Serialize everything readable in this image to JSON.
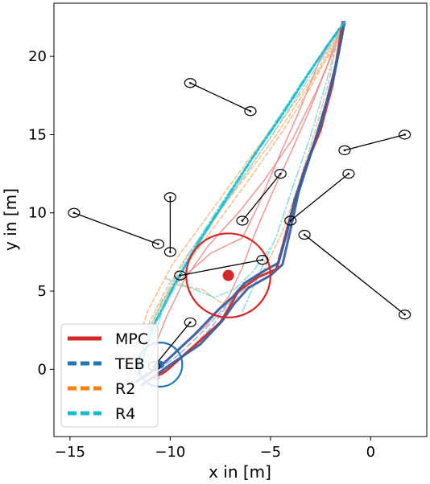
{
  "chart_data": {
    "type": "line",
    "title": "",
    "xlabel": "x in [m]",
    "ylabel": "y in [m]",
    "xlim": [
      -15.8,
      2.8
    ],
    "ylim": [
      -4.3,
      23.4
    ],
    "xticks": [
      -15,
      -10,
      -5,
      0
    ],
    "xtick_labels": [
      "−15",
      "−10",
      "−5",
      "0"
    ],
    "yticks": [
      0,
      5,
      10,
      15,
      20
    ],
    "ytick_labels": [
      "0",
      "5",
      "10",
      "15",
      "20"
    ],
    "legend": {
      "placement": "lower-left",
      "entries": [
        {
          "name": "MPC",
          "color": "#d62728",
          "style": "solid"
        },
        {
          "name": "TEB",
          "color": "#1f77b4",
          "style": "dashed"
        },
        {
          "name": "R2",
          "color": "#ff7f0e",
          "style": "dashed"
        },
        {
          "name": "R4",
          "color": "#17becf",
          "style": "dashed"
        }
      ]
    },
    "obstacles": [
      {
        "start": [
          -9.0,
          18.3
        ],
        "end": [
          -6.0,
          16.5
        ]
      },
      {
        "start": [
          -10.0,
          11.0
        ],
        "end": [
          -10.0,
          7.5
        ]
      },
      {
        "start": [
          -14.8,
          10.0
        ],
        "end": [
          -10.6,
          8.0
        ]
      },
      {
        "start": [
          -6.4,
          9.5
        ],
        "end": [
          -4.5,
          12.5
        ]
      },
      {
        "start": [
          -4.0,
          9.5
        ],
        "end": [
          -1.1,
          12.5
        ]
      },
      {
        "start": [
          -1.3,
          14.0
        ],
        "end": [
          1.7,
          15.0
        ]
      },
      {
        "start": [
          -3.3,
          8.6
        ],
        "end": [
          1.7,
          3.5
        ]
      },
      {
        "start": [
          -9.5,
          6.0
        ],
        "end": [
          -5.4,
          7.0
        ]
      },
      {
        "start": [
          -10.8,
          0.2
        ],
        "end": [
          -9.0,
          3.0
        ]
      }
    ],
    "robot_start": [
      -7.1,
      6.0
    ],
    "robot_radius": 2.1,
    "goal_region": {
      "center": [
        -10.5,
        0.3
      ],
      "radius": 1.1
    },
    "series": [
      {
        "name": "MPC",
        "color": "#d62728",
        "role": "main",
        "points": [
          [
            -11.2,
            -0.8
          ],
          [
            -10.2,
            -0.1
          ],
          [
            -8.8,
            1.5
          ],
          [
            -7.5,
            3.0
          ],
          [
            -6.9,
            4.3
          ],
          [
            -6.6,
            5.0
          ],
          [
            -5.6,
            5.9
          ],
          [
            -4.7,
            6.4
          ],
          [
            -4.4,
            7.8
          ],
          [
            -4.0,
            9.8
          ],
          [
            -3.3,
            12.8
          ],
          [
            -2.5,
            15.3
          ],
          [
            -1.9,
            18.2
          ],
          [
            -1.4,
            22.2
          ]
        ]
      },
      {
        "name": "MPC",
        "color": "#e88482",
        "role": "variant",
        "points": [
          [
            -11.3,
            -0.6
          ],
          [
            -10.0,
            0.8
          ],
          [
            -8.2,
            2.8
          ],
          [
            -7.1,
            4.6
          ],
          [
            -6.4,
            6.5
          ],
          [
            -5.8,
            8.6
          ],
          [
            -4.9,
            11.3
          ],
          [
            -4.0,
            13.8
          ],
          [
            -3.1,
            16.4
          ],
          [
            -2.2,
            19.3
          ],
          [
            -1.4,
            22.2
          ]
        ]
      },
      {
        "name": "MPC",
        "color": "#e88482",
        "role": "variant",
        "points": [
          [
            -11.1,
            0.4
          ],
          [
            -10.2,
            3.3
          ],
          [
            -9.3,
            5.7
          ],
          [
            -8.1,
            7.9
          ],
          [
            -6.6,
            10.0
          ],
          [
            -5.3,
            12.1
          ],
          [
            -3.9,
            14.7
          ],
          [
            -2.7,
            17.8
          ],
          [
            -1.7,
            20.8
          ],
          [
            -1.4,
            22.2
          ]
        ]
      },
      {
        "name": "MPC",
        "color": "#e88482",
        "role": "variant",
        "points": [
          [
            -9.6,
            5.6
          ],
          [
            -8.0,
            7.4
          ],
          [
            -6.4,
            8.4
          ],
          [
            -5.6,
            10.5
          ],
          [
            -4.5,
            13.8
          ],
          [
            -3.5,
            16.7
          ],
          [
            -2.6,
            19.6
          ],
          [
            -1.6,
            21.8
          ]
        ]
      },
      {
        "name": "TEB",
        "color": "#3a5fa0",
        "role": "main",
        "points": [
          [
            -11.7,
            -0.8
          ],
          [
            -10.3,
            0.4
          ],
          [
            -8.8,
            2.2
          ],
          [
            -7.6,
            3.8
          ],
          [
            -6.9,
            4.6
          ],
          [
            -6.3,
            5.5
          ],
          [
            -5.3,
            6.3
          ],
          [
            -4.6,
            6.8
          ],
          [
            -4.2,
            8.6
          ],
          [
            -3.8,
            10.8
          ],
          [
            -3.2,
            13.1
          ],
          [
            -2.5,
            15.6
          ],
          [
            -1.8,
            18.9
          ],
          [
            -1.3,
            22.2
          ]
        ]
      },
      {
        "name": "TEB",
        "color": "#3a5fa0",
        "role": "main",
        "points": [
          [
            -11.4,
            -1.0
          ],
          [
            -10.0,
            0.3
          ],
          [
            -8.5,
            1.6
          ],
          [
            -7.4,
            3.1
          ],
          [
            -6.8,
            4.2
          ],
          [
            -6.1,
            5.2
          ],
          [
            -5.0,
            6.0
          ],
          [
            -4.4,
            6.7
          ],
          [
            -4.0,
            8.9
          ],
          [
            -3.6,
            11.3
          ],
          [
            -2.9,
            14.1
          ],
          [
            -2.2,
            17.1
          ],
          [
            -1.6,
            20.2
          ],
          [
            -1.3,
            22.2
          ]
        ]
      },
      {
        "name": "TEB",
        "color": "#86a9cf",
        "role": "variant",
        "points": [
          [
            -11.9,
            -1.6
          ],
          [
            -10.6,
            -0.6
          ],
          [
            -9.2,
            1.0
          ],
          [
            -8.0,
            2.6
          ],
          [
            -7.2,
            4.0
          ],
          [
            -6.6,
            4.9
          ],
          [
            -5.4,
            5.7
          ],
          [
            -4.8,
            6.2
          ],
          [
            -4.5,
            7.6
          ],
          [
            -4.0,
            9.9
          ]
        ]
      },
      {
        "name": "TEB",
        "color": "#86a9cf",
        "role": "variant",
        "points": [
          [
            -10.9,
            -0.3
          ],
          [
            -9.6,
            0.9
          ],
          [
            -8.3,
            2.5
          ],
          [
            -7.0,
            4.4
          ],
          [
            -6.0,
            5.8
          ],
          [
            -5.1,
            6.5
          ]
        ]
      },
      {
        "name": "R2",
        "color": "#ffae6e",
        "role": "variant",
        "points": [
          [
            -12.1,
            -0.6
          ],
          [
            -11.3,
            2.3
          ],
          [
            -10.3,
            4.9
          ],
          [
            -9.2,
            7.2
          ],
          [
            -7.9,
            9.5
          ],
          [
            -6.3,
            12.2
          ],
          [
            -4.8,
            14.8
          ],
          [
            -3.3,
            17.7
          ],
          [
            -2.0,
            20.2
          ],
          [
            -1.3,
            22.2
          ]
        ]
      },
      {
        "name": "R2",
        "color": "#ffae6e",
        "role": "variant",
        "points": [
          [
            -11.8,
            -0.2
          ],
          [
            -10.8,
            3.3
          ],
          [
            -9.6,
            6.0
          ],
          [
            -8.4,
            8.4
          ],
          [
            -7.0,
            11.1
          ],
          [
            -5.6,
            13.7
          ],
          [
            -4.1,
            16.5
          ],
          [
            -2.6,
            19.2
          ],
          [
            -1.3,
            22.2
          ]
        ]
      },
      {
        "name": "R2",
        "color": "#ffae6e",
        "role": "variant",
        "points": [
          [
            -11.5,
            0.8
          ],
          [
            -10.4,
            4.3
          ],
          [
            -9.0,
            7.0
          ],
          [
            -7.4,
            9.8
          ],
          [
            -5.8,
            12.6
          ],
          [
            -4.3,
            15.4
          ],
          [
            -3.0,
            18.0
          ],
          [
            -2.0,
            20.4
          ],
          [
            -1.3,
            22.2
          ]
        ]
      },
      {
        "name": "R2",
        "color": "#ffae6e",
        "role": "variant",
        "points": [
          [
            -9.7,
            5.4
          ],
          [
            -8.4,
            5.1
          ],
          [
            -7.4,
            4.2
          ],
          [
            -6.4,
            5.0
          ],
          [
            -5.3,
            6.4
          ],
          [
            -4.4,
            8.8
          ],
          [
            -3.6,
            11.8
          ],
          [
            -2.8,
            15.1
          ],
          [
            -2.1,
            18.3
          ],
          [
            -1.6,
            21.5
          ]
        ]
      },
      {
        "name": "R2",
        "color": "#ffae6e",
        "role": "variant",
        "points": [
          [
            -12.2,
            -1.6
          ],
          [
            -11.9,
            0.6
          ],
          [
            -11.1,
            3.8
          ],
          [
            -9.9,
            6.7
          ],
          [
            -8.3,
            9.5
          ],
          [
            -6.6,
            12.5
          ],
          [
            -5.0,
            15.3
          ],
          [
            -3.4,
            18.3
          ],
          [
            -2.0,
            20.9
          ],
          [
            -1.3,
            22.2
          ]
        ]
      },
      {
        "name": "R4",
        "color": "#17becf",
        "role": "main",
        "points": [
          [
            -11.6,
            -0.4
          ],
          [
            -10.9,
            2.6
          ],
          [
            -9.8,
            5.4
          ],
          [
            -8.6,
            8.1
          ],
          [
            -7.2,
            10.9
          ],
          [
            -5.9,
            13.5
          ],
          [
            -4.5,
            16.1
          ],
          [
            -3.2,
            18.7
          ],
          [
            -2.1,
            20.8
          ],
          [
            -1.3,
            22.2
          ]
        ]
      },
      {
        "name": "R4",
        "color": "#6fd5df",
        "role": "variant",
        "points": [
          [
            -12.0,
            -1.2
          ],
          [
            -11.4,
            1.6
          ],
          [
            -10.4,
            4.4
          ],
          [
            -9.1,
            7.3
          ],
          [
            -7.6,
            10.3
          ],
          [
            -6.1,
            13.2
          ],
          [
            -4.6,
            16.1
          ],
          [
            -3.1,
            19.0
          ],
          [
            -1.8,
            21.4
          ],
          [
            -1.3,
            22.2
          ]
        ]
      },
      {
        "name": "R4",
        "color": "#6fd5df",
        "role": "variant",
        "points": [
          [
            -11.2,
            0.5
          ],
          [
            -10.4,
            3.7
          ],
          [
            -9.2,
            6.6
          ],
          [
            -7.9,
            9.4
          ],
          [
            -6.4,
            12.2
          ],
          [
            -4.9,
            15.0
          ],
          [
            -3.5,
            17.8
          ],
          [
            -2.2,
            20.3
          ],
          [
            -1.3,
            22.2
          ]
        ]
      },
      {
        "name": "R4",
        "color": "#6fd5df",
        "role": "variant",
        "points": [
          [
            -6.4,
            3.7
          ],
          [
            -5.6,
            6.0
          ],
          [
            -4.7,
            8.5
          ],
          [
            -3.9,
            11.6
          ],
          [
            -3.0,
            14.9
          ],
          [
            -2.2,
            18.4
          ],
          [
            -1.6,
            21.4
          ]
        ]
      },
      {
        "name": "R4",
        "color": "#6fd5df",
        "role": "variant",
        "points": [
          [
            -10.2,
            5.8
          ],
          [
            -9.0,
            5.2
          ],
          [
            -7.8,
            4.6
          ],
          [
            -6.8,
            5.1
          ],
          [
            -5.9,
            6.2
          ],
          [
            -5.0,
            7.8
          ]
        ]
      }
    ]
  }
}
